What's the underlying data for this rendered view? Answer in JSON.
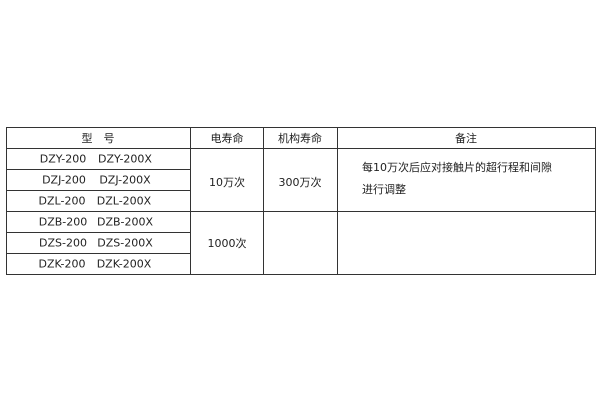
{
  "header": {
    "model": "型　号",
    "electrical_life": "电寿命",
    "mechanical_life": "机构寿命",
    "remarks": "备注"
  },
  "rows": [
    {
      "model_a": "DZY-200",
      "model_b": "DZY-200X"
    },
    {
      "model_a": "DZJ-200",
      "model_b": "DZJ-200X"
    },
    {
      "model_a": "DZL-200",
      "model_b": "DZL-200X"
    },
    {
      "model_a": "DZB-200",
      "model_b": "DZB-200X"
    },
    {
      "model_a": "DZS-200",
      "model_b": "DZS-200X"
    },
    {
      "model_a": "DZK-200",
      "model_b": "DZK-200X"
    }
  ],
  "groups": [
    {
      "electrical_life": "10万次",
      "mechanical_life": "300万次",
      "remarks": [
        "每10万次后应对接触片的超行程和间隙",
        "进行调整"
      ]
    },
    {
      "electrical_life": "1000次",
      "mechanical_life": "",
      "remarks": []
    }
  ]
}
